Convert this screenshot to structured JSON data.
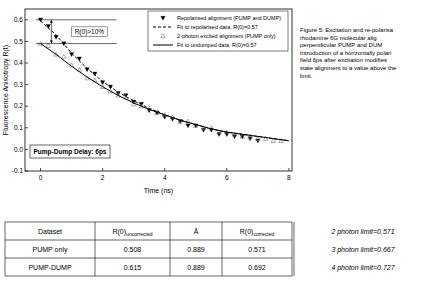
{
  "chart_data": {
    "type": "scatter",
    "xlabel": "Time (ns)",
    "ylabel": "Fluorescence Anisotropy R(t)",
    "xlim": [
      -0.5,
      8.1
    ],
    "xticks": [
      0,
      2,
      4,
      6,
      8
    ],
    "ylim": [
      -0.1,
      0.65
    ],
    "yticks": [
      -0.1,
      {
        "value": 0,
        "label": "0.0"
      },
      0.1,
      0.2,
      0.3,
      0.4,
      0.5,
      0.6
    ],
    "grid": false,
    "legend": "upper-right",
    "series": [
      {
        "name": "Repolarised alignment (PUMP and DUMP)",
        "type": "scatter",
        "marker": "triangle-down",
        "color": "#000000",
        "x": [
          0,
          0.25,
          0.5,
          0.75,
          1,
          1.25,
          1.5,
          1.75,
          2,
          2.25,
          2.5,
          2.75,
          3,
          3.25,
          3.5,
          3.75,
          4,
          4.25,
          4.5,
          4.75,
          5,
          5.25,
          5.5,
          5.75,
          6,
          6.25,
          6.5,
          6.75,
          7
        ],
        "values": [
          0.6,
          0.57,
          0.52,
          0.49,
          0.44,
          0.42,
          0.37,
          0.35,
          0.31,
          0.29,
          0.26,
          0.25,
          0.22,
          0.21,
          0.18,
          0.17,
          0.15,
          0.14,
          0.13,
          0.11,
          0.11,
          0.09,
          0.09,
          0.07,
          0.07,
          0.06,
          0.06,
          0.05,
          0.04
        ]
      },
      {
        "name": "Fit to repolarised data, R(0)=0.57",
        "type": "line",
        "line_style": "dashed",
        "color": "#000000",
        "x": [
          0,
          0.5,
          1,
          1.5,
          2,
          2.5,
          3,
          3.5,
          4,
          4.5,
          5,
          5.5,
          6,
          6.5,
          7,
          7.5,
          8
        ],
        "values": [
          0.595,
          0.53,
          0.445,
          0.375,
          0.315,
          0.265,
          0.225,
          0.19,
          0.16,
          0.135,
          0.115,
          0.095,
          0.08,
          0.07,
          0.06,
          0.05,
          0.04
        ]
      },
      {
        "name": "2-photon excited alignment (PUMP only)",
        "type": "scatter",
        "marker": "triangle-up-open",
        "color": "#777777",
        "x": [
          0,
          0.25,
          0.5,
          0.75,
          1,
          1.25,
          1.5,
          1.75,
          2,
          2.25,
          2.5,
          2.75,
          3,
          3.25,
          3.5,
          3.75,
          4,
          4.25,
          4.5,
          4.75,
          5,
          5.25,
          5.5,
          5.75,
          6,
          6.25,
          6.5,
          6.75,
          7,
          7.25,
          7.5,
          7.75
        ],
        "values": [
          0.49,
          0.48,
          0.44,
          0.43,
          0.39,
          0.37,
          0.33,
          0.32,
          0.29,
          0.27,
          0.25,
          0.24,
          0.21,
          0.2,
          0.19,
          0.17,
          0.16,
          0.15,
          0.13,
          0.13,
          0.11,
          0.1,
          0.1,
          0.08,
          0.08,
          0.07,
          0.06,
          0.06,
          0.05,
          0.05,
          0.04,
          0.04
        ]
      },
      {
        "name": "Fit to undumped data, R(0)=0.57",
        "type": "line",
        "line_style": "solid",
        "color": "#000000",
        "x": [
          0,
          0.5,
          1,
          1.5,
          2,
          2.5,
          3,
          3.5,
          4,
          4.5,
          5,
          5.5,
          6,
          6.5,
          7,
          7.5,
          8
        ],
        "values": [
          0.49,
          0.44,
          0.385,
          0.335,
          0.29,
          0.25,
          0.215,
          0.185,
          0.16,
          0.135,
          0.115,
          0.095,
          0.08,
          0.07,
          0.06,
          0.05,
          0.04
        ]
      }
    ],
    "annotations": [
      {
        "text": "R(0)>10%",
        "y": [
          0.49,
          0.6
        ]
      },
      {
        "text": "Pump-Dump Delay: 6ps"
      }
    ]
  },
  "caption": {
    "lines": [
      "Figure 5: Excitation and re-polarisa",
      "rhodamine 6G molecular alig",
      "perpendicular PUMP and DUM",
      "Introduction of a horizontally polari",
      "field 6ps after excitation modifies",
      "state alignment to a value above the",
      "limit."
    ]
  },
  "table": {
    "header": [
      {
        "text": "Dataset"
      },
      {
        "text": "R(0)",
        "sub": "uncorrected"
      },
      {
        "text": "Ā"
      },
      {
        "text": "R(0)",
        "sub": "corrected"
      }
    ],
    "rows": [
      [
        "PUMP only",
        0.508,
        0.889,
        0.571
      ],
      [
        "PUMP-DUMP",
        0.615,
        0.889,
        0.692
      ]
    ],
    "limits": [
      "2 photon limit=0.571",
      "3 photon limit=0.667",
      "4 photon limit=0.727"
    ]
  }
}
